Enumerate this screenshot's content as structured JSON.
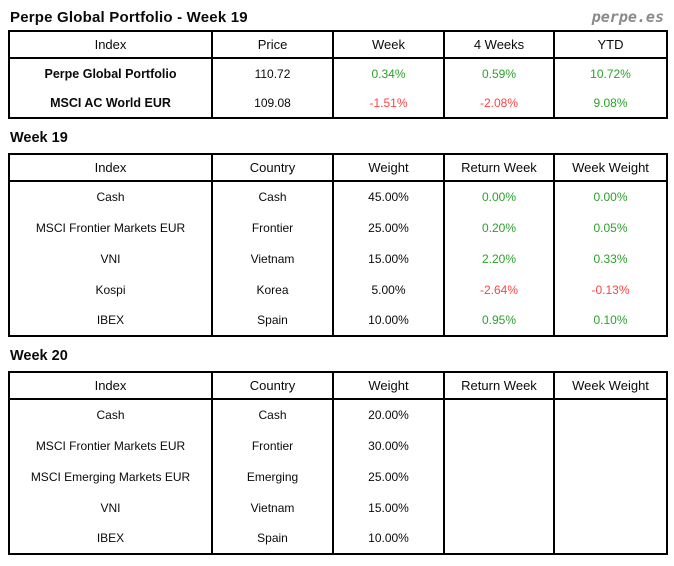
{
  "header": {
    "title": "Perpe Global Portfolio - Week 19",
    "logo": "perpe.es"
  },
  "colors": {
    "positive_green": "#2da02d",
    "negative_red": "#ff4343",
    "border_black": "#000000",
    "logo_gray": "#8a8a8a"
  },
  "summary_table": {
    "columns": [
      "Index",
      "Price",
      "Week",
      "4 Weeks",
      "YTD"
    ],
    "rows": [
      {
        "index": "Perpe Global Portfolio",
        "price": "110.72",
        "week": "0.34%",
        "four_weeks": "0.59%",
        "ytd": "10.72%"
      },
      {
        "index": "MSCI AC World EUR",
        "price": "109.08",
        "week": "-1.51%",
        "four_weeks": "-2.08%",
        "ytd": "9.08%"
      }
    ]
  },
  "week19": {
    "heading": "Week 19",
    "columns": [
      "Index",
      "Country",
      "Weight",
      "Return Week",
      "Week Weight"
    ],
    "rows": [
      {
        "index": "Cash",
        "country": "Cash",
        "weight": "45.00%",
        "return_week": "0.00%",
        "week_weight": "0.00%"
      },
      {
        "index": "MSCI Frontier Markets EUR",
        "country": "Frontier",
        "weight": "25.00%",
        "return_week": "0.20%",
        "week_weight": "0.05%"
      },
      {
        "index": "VNI",
        "country": "Vietnam",
        "weight": "15.00%",
        "return_week": "2.20%",
        "week_weight": "0.33%"
      },
      {
        "index": "Kospi",
        "country": "Korea",
        "weight": "5.00%",
        "return_week": "-2.64%",
        "week_weight": "-0.13%"
      },
      {
        "index": "IBEX",
        "country": "Spain",
        "weight": "10.00%",
        "return_week": "0.95%",
        "week_weight": "0.10%"
      }
    ]
  },
  "week20": {
    "heading": "Week 20",
    "columns": [
      "Index",
      "Country",
      "Weight",
      "Return Week",
      "Week Weight"
    ],
    "rows": [
      {
        "index": "Cash",
        "country": "Cash",
        "weight": "20.00%",
        "return_week": "",
        "week_weight": ""
      },
      {
        "index": "MSCI Frontier Markets EUR",
        "country": "Frontier",
        "weight": "30.00%",
        "return_week": "",
        "week_weight": ""
      },
      {
        "index": "MSCI Emerging Markets EUR",
        "country": "Emerging",
        "weight": "25.00%",
        "return_week": "",
        "week_weight": ""
      },
      {
        "index": "VNI",
        "country": "Vietnam",
        "weight": "15.00%",
        "return_week": "",
        "week_weight": ""
      },
      {
        "index": "IBEX",
        "country": "Spain",
        "weight": "10.00%",
        "return_week": "",
        "week_weight": ""
      }
    ]
  }
}
